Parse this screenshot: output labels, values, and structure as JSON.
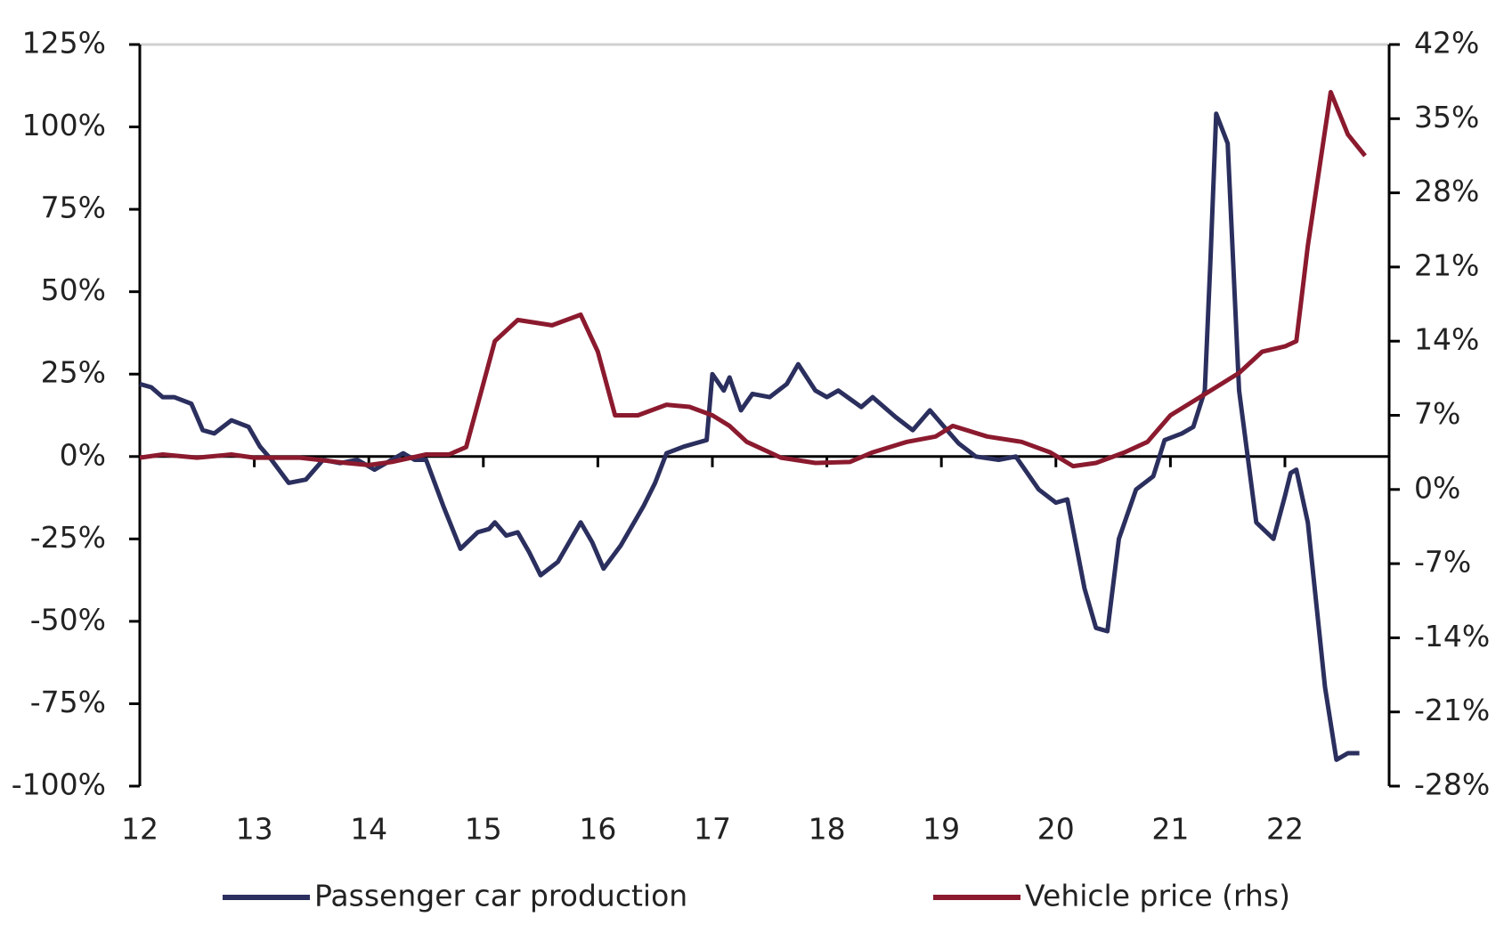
{
  "chart_data": {
    "type": "line",
    "xlim": [
      12,
      22.91
    ],
    "xticks": [
      12,
      13,
      14,
      15,
      16,
      17,
      18,
      19,
      20,
      21,
      22
    ],
    "ylim": [
      -100,
      125
    ],
    "yticks": [
      {
        "value": -100,
        "label": "-100%"
      },
      {
        "value": -75,
        "label": "-75%"
      },
      {
        "value": -50,
        "label": "-50%"
      },
      {
        "value": -25,
        "label": "-25%"
      },
      {
        "value": 0,
        "label": "0%"
      },
      {
        "value": 25,
        "label": "25%"
      },
      {
        "value": 50,
        "label": "50%"
      },
      {
        "value": 75,
        "label": "75%"
      },
      {
        "value": 100,
        "label": "100%"
      },
      {
        "value": 125,
        "label": "125%"
      }
    ],
    "y2lim": [
      -28,
      42
    ],
    "y2ticks": [
      {
        "value": -28,
        "label": "-28%"
      },
      {
        "value": -21,
        "label": "-21%"
      },
      {
        "value": -14,
        "label": "-14%"
      },
      {
        "value": -7,
        "label": "-7%"
      },
      {
        "value": 0,
        "label": "0%"
      },
      {
        "value": 7,
        "label": "7%"
      },
      {
        "value": 14,
        "label": "14%"
      },
      {
        "value": 21,
        "label": "21%"
      },
      {
        "value": 28,
        "label": "28%"
      },
      {
        "value": 35,
        "label": "35%"
      },
      {
        "value": 42,
        "label": "42%"
      }
    ],
    "series": [
      {
        "name": "Passenger car production",
        "color": "#2b2f5e",
        "x": [
          12.0,
          12.1,
          12.2,
          12.3,
          12.45,
          12.55,
          12.65,
          12.8,
          12.95,
          13.05,
          13.15,
          13.3,
          13.45,
          13.6,
          13.75,
          13.9,
          14.05,
          14.15,
          14.3,
          14.4,
          14.5,
          14.65,
          14.8,
          14.95,
          15.05,
          15.1,
          15.2,
          15.3,
          15.4,
          15.5,
          15.65,
          15.85,
          15.95,
          16.05,
          16.2,
          16.4,
          16.5,
          16.6,
          16.75,
          16.85,
          16.95,
          17.0,
          17.1,
          17.15,
          17.25,
          17.35,
          17.5,
          17.65,
          17.75,
          17.9,
          18.0,
          18.1,
          18.3,
          18.4,
          18.6,
          18.75,
          18.9,
          19.05,
          19.15,
          19.3,
          19.5,
          19.65,
          19.85,
          20.0,
          20.1,
          20.25,
          20.35,
          20.45,
          20.55,
          20.7,
          20.85,
          20.95,
          21.1,
          21.2,
          21.3,
          21.35,
          21.4,
          21.5,
          21.6,
          21.75,
          21.9,
          22.0,
          22.05,
          22.1,
          22.2,
          22.35,
          22.45,
          22.55,
          22.65
        ],
        "values": [
          22,
          21,
          18,
          18,
          16,
          8,
          7,
          11,
          9,
          3,
          -1,
          -8,
          -7,
          -1,
          -2,
          -1,
          -4,
          -2,
          1,
          -1,
          -1,
          -15,
          -28,
          -23,
          -22,
          -20,
          -24,
          -23,
          -29,
          -36,
          -32,
          -20,
          -26,
          -34,
          -27,
          -15,
          -8,
          1,
          3,
          4,
          5,
          25,
          20,
          24,
          14,
          19,
          18,
          22,
          28,
          20,
          18,
          20,
          15,
          18,
          12,
          8,
          14,
          8,
          4,
          0,
          -1,
          0,
          -10,
          -14,
          -13,
          -40,
          -52,
          -53,
          -25,
          -10,
          -6,
          5,
          7,
          9,
          20,
          60,
          104,
          95,
          20,
          -20,
          -25,
          -12,
          -5,
          -4,
          -20,
          -70,
          -92,
          -90,
          -90
        ]
      },
      {
        "name": "Vehicle price (rhs)",
        "color": "#8b1a2e",
        "axis": "y2",
        "x": [
          12.0,
          12.2,
          12.5,
          12.8,
          13.0,
          13.4,
          13.8,
          14.0,
          14.2,
          14.5,
          14.7,
          14.85,
          14.95,
          15.1,
          15.3,
          15.6,
          15.85,
          16.0,
          16.15,
          16.35,
          16.6,
          16.8,
          17.0,
          17.15,
          17.3,
          17.6,
          17.9,
          18.2,
          18.4,
          18.7,
          18.95,
          19.1,
          19.4,
          19.7,
          19.95,
          20.15,
          20.35,
          20.6,
          20.8,
          21.0,
          21.3,
          21.6,
          21.8,
          22.0,
          22.1,
          22.2,
          22.4,
          22.55,
          22.7
        ],
        "values": [
          3,
          3.3,
          3,
          3.3,
          3,
          3,
          2.5,
          2.3,
          2.6,
          3.3,
          3.3,
          4,
          8,
          14,
          16,
          15.5,
          16.5,
          13,
          7,
          7,
          8,
          7.8,
          7,
          6,
          4.5,
          3,
          2.5,
          2.6,
          3.5,
          4.5,
          5,
          6,
          5,
          4.5,
          3.5,
          2.2,
          2.5,
          3.5,
          4.5,
          7,
          9,
          11,
          13,
          13.5,
          14,
          23,
          37.5,
          33.5,
          31.5
        ]
      }
    ]
  }
}
